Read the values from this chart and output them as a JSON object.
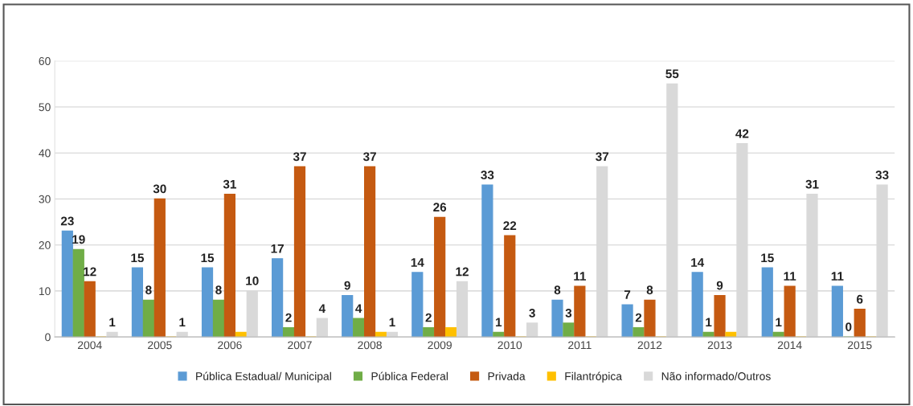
{
  "chart_data": {
    "type": "bar",
    "categories": [
      "2004",
      "2005",
      "2006",
      "2007",
      "2008",
      "2009",
      "2010",
      "2011",
      "2012",
      "2013",
      "2014",
      "2015"
    ],
    "series": [
      {
        "name": "Pública Estadual/ Municipal",
        "color": "#5b9bd5",
        "values": [
          23,
          15,
          15,
          17,
          9,
          14,
          33,
          8,
          7,
          14,
          15,
          11
        ],
        "value_labels": [
          "23",
          "15",
          "15",
          "17",
          "9",
          "14",
          "33",
          "8",
          "7",
          "14",
          "15",
          "11"
        ]
      },
      {
        "name": "Pública Federal",
        "color": "#70ad47",
        "values": [
          19,
          8,
          8,
          2,
          4,
          2,
          1,
          3,
          2,
          1,
          1,
          0
        ],
        "value_labels": [
          "19",
          "8",
          "8",
          "2",
          "4",
          "2",
          "1",
          "3",
          "2",
          "1",
          "1",
          "0"
        ]
      },
      {
        "name": "Privada",
        "color": "#c55a11",
        "values": [
          12,
          30,
          31,
          37,
          37,
          26,
          22,
          11,
          8,
          9,
          11,
          6
        ],
        "value_labels": [
          "12",
          "30",
          "31",
          "37",
          "37",
          "26",
          "22",
          "11",
          "8",
          "9",
          "11",
          "6"
        ]
      },
      {
        "name": "Filantrópica",
        "color": "#ffc000",
        "values": [
          0,
          0,
          1,
          0,
          1,
          2,
          0,
          0,
          0,
          1,
          0,
          0
        ],
        "value_labels": [
          null,
          null,
          null,
          null,
          null,
          null,
          null,
          null,
          null,
          null,
          null,
          null
        ]
      },
      {
        "name": "Não informado/Outros",
        "color": "#d9d9d9",
        "values": [
          1,
          1,
          10,
          4,
          1,
          12,
          3,
          37,
          55,
          42,
          31,
          33
        ],
        "value_labels": [
          "1",
          "1",
          "10",
          "4",
          "1",
          "12",
          "3",
          "37",
          "55",
          "42",
          "31",
          "33"
        ]
      }
    ],
    "ylim": [
      0,
      60
    ],
    "yticks": [
      0,
      10,
      20,
      30,
      40,
      50,
      60
    ],
    "grid": "y",
    "legend": "bottom"
  }
}
